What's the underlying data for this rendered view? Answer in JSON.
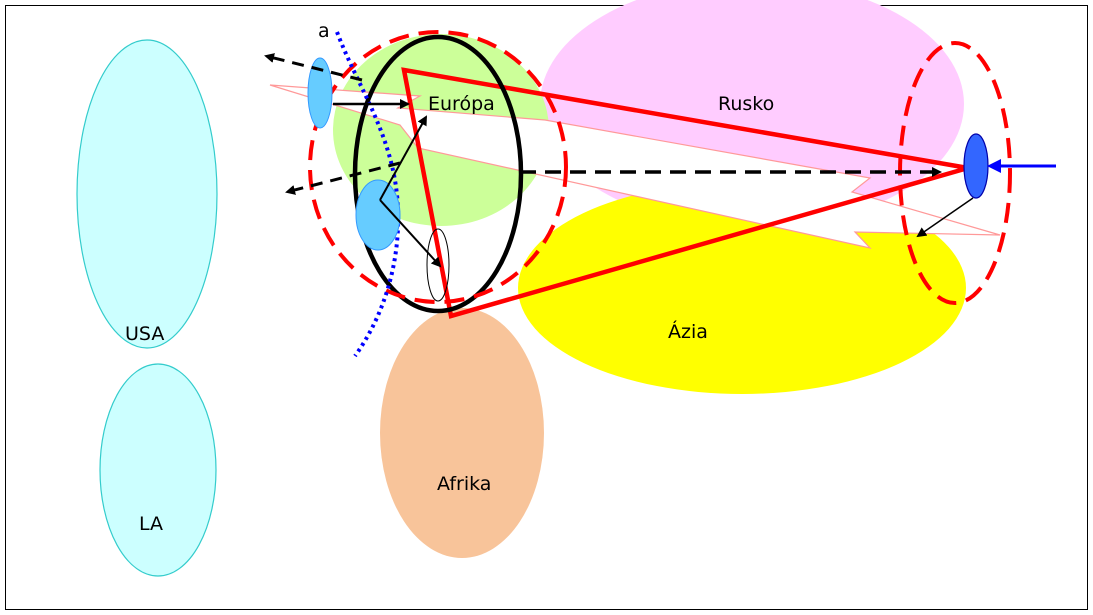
{
  "regions": {
    "usa": {
      "label": "USA",
      "color": "#ccffff",
      "border": "#33cccc"
    },
    "la": {
      "label": "LA",
      "color": "#ccffff",
      "border": "#33cccc"
    },
    "europa": {
      "label": "Európa",
      "color": "#ccff99"
    },
    "rusko": {
      "label": "Rusko",
      "color": "#ffccff"
    },
    "azia": {
      "label": "Ázia",
      "color": "#ffff00"
    },
    "afrika": {
      "label": "Afrika",
      "color": "#f8c49a"
    }
  },
  "line_label": "a",
  "colors": {
    "red": "#ff0000",
    "blue_dots": "#0000ff",
    "light_blue_node": "#66ccff",
    "dark_blue_node": "#3366ff",
    "black": "#000000",
    "band_outline": "#ff9999"
  }
}
